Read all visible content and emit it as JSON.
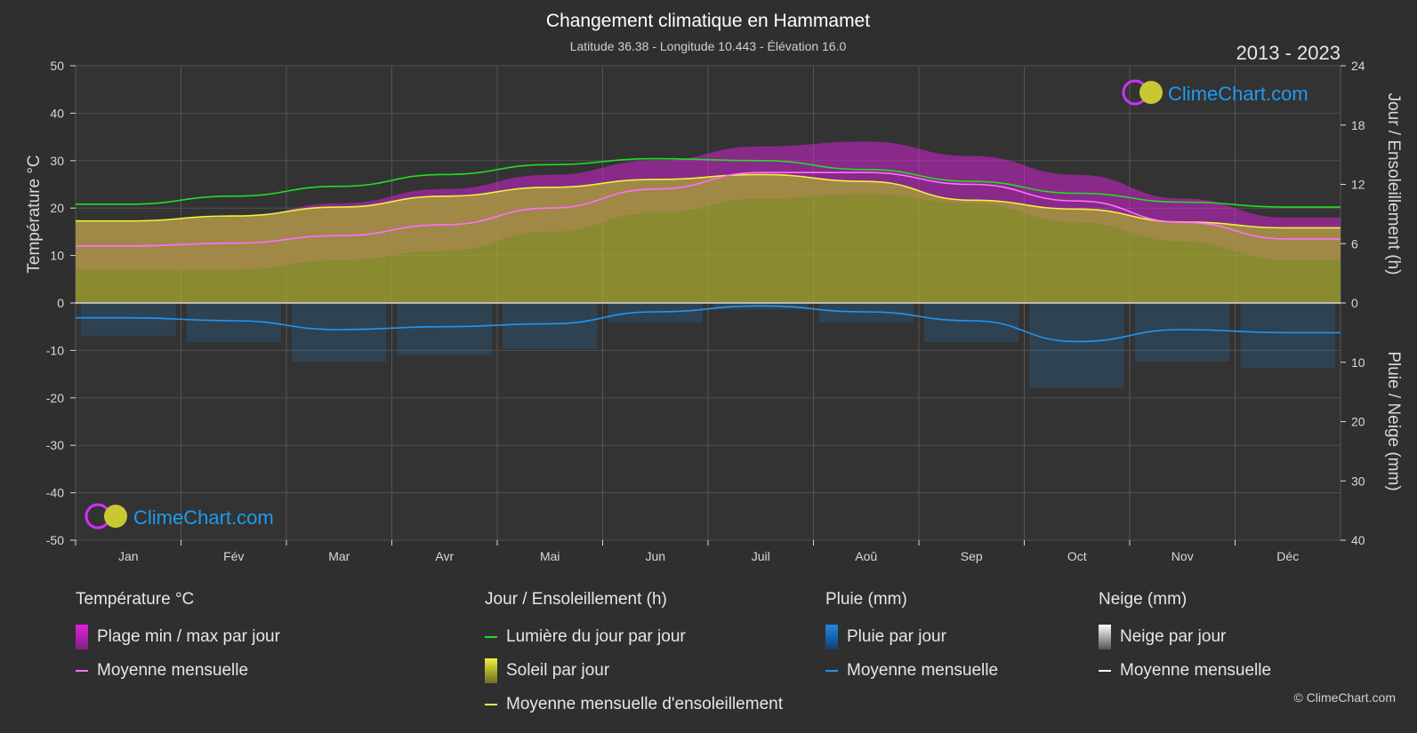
{
  "title": "Changement climatique en Hammamet",
  "subtitle": "Latitude 36.38 - Longitude 10.443 - Élévation 16.0",
  "period": "2013 - 2023",
  "logo_text": "ClimeChart.com",
  "copyright": "© ClimeChart.com",
  "colors": {
    "background": "#2f2f2f",
    "temp_range": "#e020e0",
    "temp_mean": "#ff70ff",
    "daylight": "#22dd22",
    "sunshine_fill": "#a8a832",
    "sunshine_mean": "#f0f040",
    "rain": "#1e88e5",
    "rain_mean": "#2196f3",
    "snow_mean": "#ffffff"
  },
  "chart_data": {
    "type": "area",
    "x_categories": [
      "Jan",
      "Fév",
      "Mar",
      "Avr",
      "Mai",
      "Jun",
      "Juil",
      "Aoû",
      "Sep",
      "Oct",
      "Nov",
      "Déc"
    ],
    "left_axis": {
      "label": "Température °C",
      "range": [
        -50,
        50
      ],
      "ticks": [
        50,
        40,
        30,
        20,
        10,
        0,
        -10,
        -20,
        -30,
        -40,
        -50
      ]
    },
    "right_axis_top": {
      "label": "Jour / Ensoleillement (h)",
      "range": [
        0,
        24
      ],
      "ticks": [
        24,
        18,
        12,
        6,
        0
      ]
    },
    "right_axis_bottom": {
      "label": "Pluie / Neige (mm)",
      "range": [
        0,
        40
      ],
      "ticks": [
        0,
        10,
        20,
        30,
        40
      ]
    },
    "series": [
      {
        "name": "Lumière du jour par jour",
        "unit": "h",
        "values": [
          10.0,
          10.8,
          11.8,
          13.0,
          14.0,
          14.6,
          14.4,
          13.5,
          12.3,
          11.1,
          10.2,
          9.7
        ]
      },
      {
        "name": "Moyenne mensuelle d'ensoleillement",
        "unit": "h",
        "values": [
          8.3,
          8.8,
          9.7,
          10.8,
          11.7,
          12.5,
          13.0,
          12.3,
          10.4,
          9.5,
          8.2,
          7.6
        ]
      },
      {
        "name": "Moyenne mensuelle",
        "kind": "temperature",
        "unit": "°C",
        "values": [
          12.0,
          12.6,
          14.2,
          16.5,
          20.0,
          24.0,
          27.5,
          27.5,
          25.0,
          21.5,
          17.0,
          13.5
        ]
      },
      {
        "name": "Plage min / max par jour",
        "kind": "temperature-range",
        "unit": "°C",
        "min": [
          7,
          7,
          9,
          11,
          15,
          19,
          22,
          23,
          21,
          17,
          13,
          9
        ],
        "max": [
          17,
          18,
          21,
          24,
          27,
          30,
          33,
          34,
          31,
          27,
          22,
          18
        ]
      },
      {
        "name": "Moyenne mensuelle",
        "kind": "rain",
        "unit": "mm",
        "values": [
          2.5,
          3.0,
          4.5,
          4.0,
          3.5,
          1.5,
          0.5,
          1.5,
          3.0,
          6.5,
          4.5,
          5.0
        ]
      }
    ]
  },
  "legend": {
    "temperature": {
      "heading": "Température °C",
      "items": [
        "Plage min / max par jour",
        "Moyenne mensuelle"
      ]
    },
    "sunshine": {
      "heading": "Jour / Ensoleillement (h)",
      "items": [
        "Lumière du jour par jour",
        "Soleil par jour",
        "Moyenne mensuelle d'ensoleillement"
      ]
    },
    "rain": {
      "heading": "Pluie (mm)",
      "items": [
        "Pluie par jour",
        "Moyenne mensuelle"
      ]
    },
    "snow": {
      "heading": "Neige (mm)",
      "items": [
        "Neige par jour",
        "Moyenne mensuelle"
      ]
    }
  }
}
